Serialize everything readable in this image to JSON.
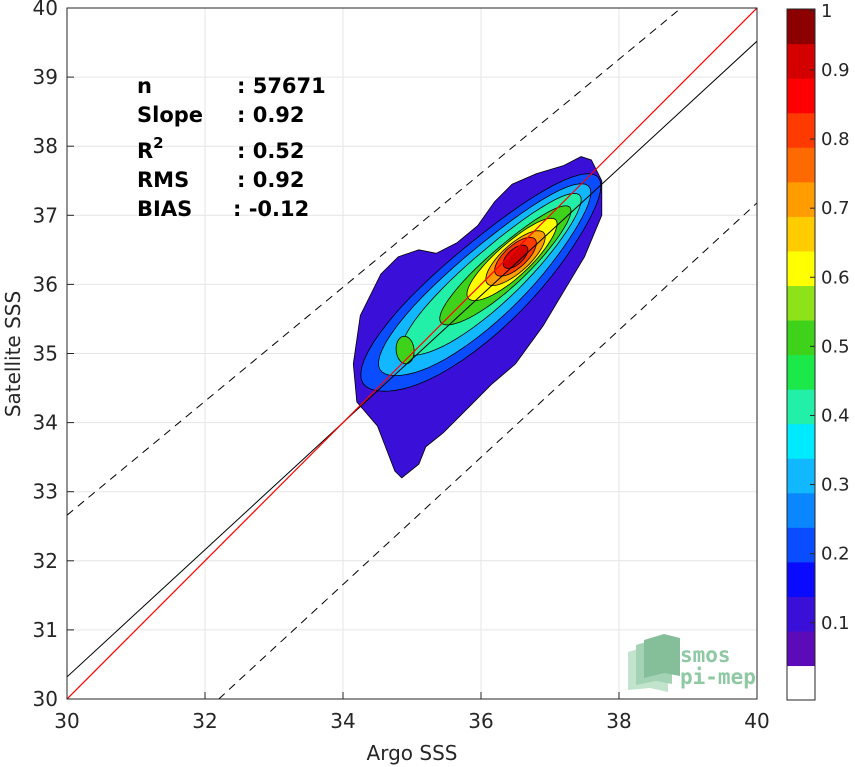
{
  "chart_data": {
    "type": "heatmap",
    "xlabel": "Argo SSS",
    "ylabel": "Satellite SSS",
    "xlim": [
      30,
      40
    ],
    "ylim": [
      30,
      40
    ],
    "xticks": [
      "30",
      "32",
      "34",
      "36",
      "38",
      "40"
    ],
    "yticks": [
      "30",
      "31",
      "32",
      "33",
      "34",
      "35",
      "36",
      "37",
      "38",
      "39",
      "40"
    ],
    "grid": true,
    "stats": [
      {
        "label": "n",
        "value": ": 57671"
      },
      {
        "label": "Slope",
        "value": ": 0.92"
      },
      {
        "label": "R",
        "sup": "2",
        "value": ": 0.52"
      },
      {
        "label": "RMS",
        "value": ": 0.92"
      },
      {
        "label": "BIAS",
        "value": ": -0.12"
      }
    ],
    "lines": {
      "identity": {
        "color": "#ff0000",
        "from": [
          30,
          30
        ],
        "to": [
          40,
          40
        ]
      },
      "regression": {
        "color": "#000000",
        "from": [
          30,
          30.32
        ],
        "to": [
          40,
          39.52
        ]
      },
      "upper_bound": {
        "style": "dashed",
        "from": [
          30,
          32.66
        ],
        "to": [
          38.9,
          40
        ]
      },
      "lower_bound": {
        "style": "dashed",
        "from": [
          32.2,
          30
        ],
        "to": [
          40,
          37.18
        ]
      }
    },
    "density_peak": {
      "x": 36.5,
      "y": 36.4
    },
    "secondary_peak": {
      "x": 34.9,
      "y": 35.05
    },
    "colorbar": {
      "min": 0,
      "max": 1,
      "ticks": [
        "0.1",
        "0.2",
        "0.3",
        "0.4",
        "0.5",
        "0.6",
        "0.7",
        "0.8",
        "0.9",
        "1"
      ],
      "colors": [
        "#ffffff",
        "#5b0cb8",
        "#3a10d8",
        "#0a0aff",
        "#0a4cff",
        "#0a86ff",
        "#12b8ff",
        "#00eaff",
        "#22f0a8",
        "#1ce84a",
        "#3fd21a",
        "#8ee21a",
        "#ffff00",
        "#ffcc00",
        "#ff9c00",
        "#ff6a00",
        "#ff3a00",
        "#ff0000",
        "#d40000",
        "#8c0000"
      ]
    }
  },
  "logo": {
    "line1": "smos",
    "line2": "pi-mep"
  }
}
